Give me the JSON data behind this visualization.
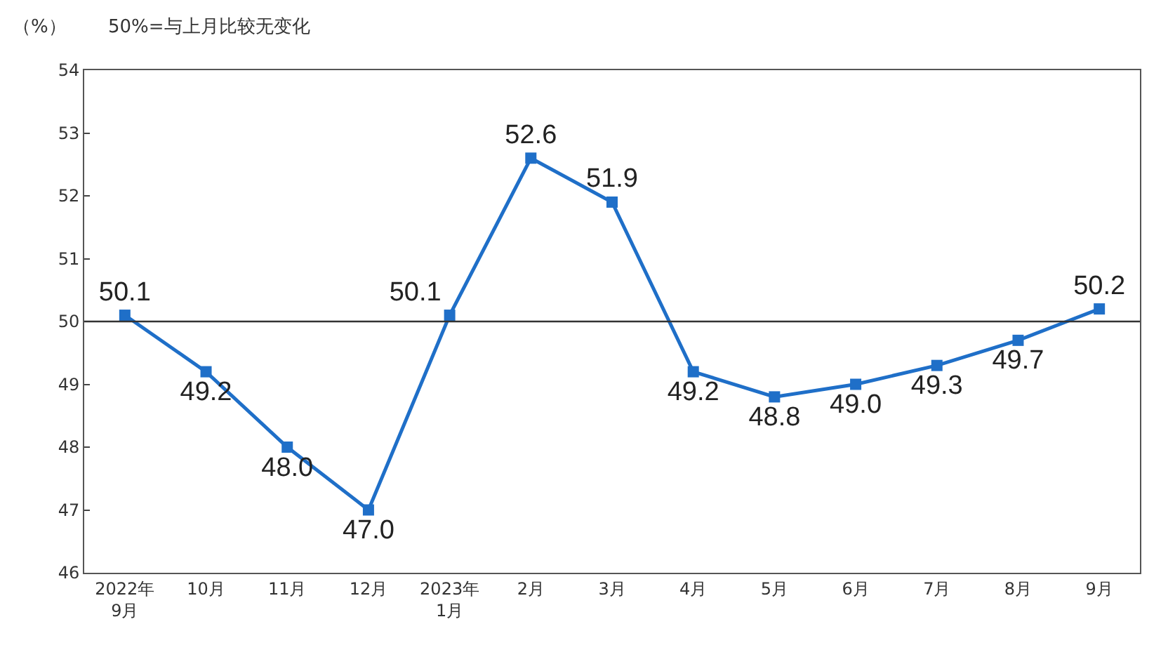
{
  "chart_data": {
    "type": "line",
    "ylabel": "（%）",
    "annotations": [
      "50%=与上月比较无变化"
    ],
    "categories": [
      "2022年\n9月",
      "10月",
      "11月",
      "12月",
      "2023年\n1月",
      "2月",
      "3月",
      "4月",
      "5月",
      "6月",
      "7月",
      "8月",
      "9月"
    ],
    "series": [
      {
        "color": "#1f6fc8",
        "values": [
          50.1,
          49.2,
          48.0,
          47.0,
          50.1,
          52.6,
          51.9,
          49.2,
          48.8,
          49.0,
          49.3,
          49.7,
          50.2
        ],
        "value_labels": [
          "50.1",
          "49.2",
          "48.0",
          "47.0",
          "50.1",
          "52.6",
          "51.9",
          "49.2",
          "48.8",
          "49.0",
          "49.3",
          "49.7",
          "50.2"
        ]
      }
    ],
    "ylim": [
      46,
      54
    ],
    "yticks": [
      46,
      47,
      48,
      49,
      50,
      51,
      52,
      53,
      54
    ],
    "grid": false,
    "marker": "square",
    "line_style": "solid",
    "ref_lines": [
      {
        "axis": "y",
        "value": 50,
        "color": "#333333"
      }
    ]
  }
}
